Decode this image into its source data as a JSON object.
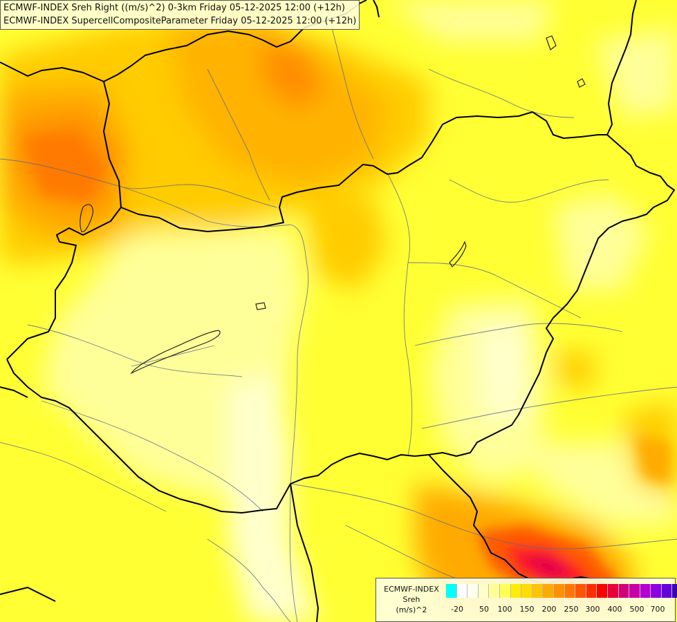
{
  "title_lines": [
    "ECMWF-INDEX Sreh Right ((m/s)^2) 0-3km Friday 05-12-2025 12:00 (+12h)",
    "ECMWF-INDEX SupercellCompositeParameter Friday 05-12-2025 12:00 (+12h)"
  ],
  "legend": {
    "title_lines": [
      "ECMWF-INDEX",
      "Sreh",
      "(m/s)^2"
    ],
    "tick_labels": [
      "-20",
      "50",
      "100",
      "150",
      "200",
      "250",
      "300",
      "400",
      "500",
      "700"
    ],
    "colors": [
      "#00ffff",
      "#ffffff",
      "#fffff0",
      "#ffffc8",
      "#ffff96",
      "#ffff5a",
      "#ffee00",
      "#ffdd00",
      "#ffc400",
      "#ffaa00",
      "#ff9100",
      "#ff7700",
      "#ff5500",
      "#ff2d00",
      "#ff0000",
      "#e6003c",
      "#d20078",
      "#c800aa",
      "#b400d2",
      "#8c00e6",
      "#6400dc",
      "#3c00b4",
      "#1e0090"
    ]
  },
  "map_layers": [
    "country-borders",
    "rivers",
    "lakes",
    "sreh-contours"
  ]
}
